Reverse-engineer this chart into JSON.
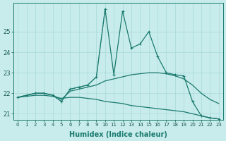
{
  "xlabel": "Humidex (Indice chaleur)",
  "background_color": "#c8ecec",
  "line_color": "#1a7a6e",
  "xlim": [
    -0.5,
    23.5
  ],
  "ylim": [
    20.7,
    26.4
  ],
  "yticks": [
    21,
    22,
    23,
    24,
    25
  ],
  "xticks": [
    0,
    1,
    2,
    3,
    4,
    5,
    6,
    7,
    8,
    9,
    10,
    11,
    12,
    13,
    14,
    15,
    16,
    17,
    18,
    19,
    20,
    21,
    22,
    23
  ],
  "series_dotted": [
    21.8,
    21.9,
    22.0,
    22.0,
    21.9,
    21.6,
    22.2,
    22.3,
    22.4,
    22.8,
    26.1,
    22.9,
    26.0,
    24.2,
    24.4,
    25.0,
    23.8,
    23.0,
    22.9,
    22.85,
    21.6,
    20.9,
    20.8,
    20.75
  ],
  "series_peak": [
    21.8,
    21.9,
    22.0,
    22.0,
    21.9,
    21.6,
    22.2,
    22.3,
    22.4,
    22.8,
    26.1,
    22.9,
    26.0,
    24.2,
    24.4,
    25.0,
    23.8,
    23.0,
    22.9,
    22.85,
    21.6,
    20.9,
    20.8,
    20.75
  ],
  "series_mid": [
    21.8,
    21.9,
    22.0,
    22.0,
    21.9,
    21.7,
    22.1,
    22.2,
    22.3,
    22.4,
    22.6,
    22.7,
    22.8,
    22.9,
    22.95,
    23.0,
    23.0,
    22.95,
    22.85,
    22.7,
    22.4,
    22.0,
    21.7,
    21.5
  ],
  "series_low": [
    21.8,
    21.85,
    21.9,
    21.9,
    21.85,
    21.75,
    21.8,
    21.8,
    21.75,
    21.7,
    21.6,
    21.55,
    21.5,
    21.4,
    21.35,
    21.3,
    21.25,
    21.2,
    21.15,
    21.1,
    21.0,
    20.9,
    20.8,
    20.75
  ]
}
